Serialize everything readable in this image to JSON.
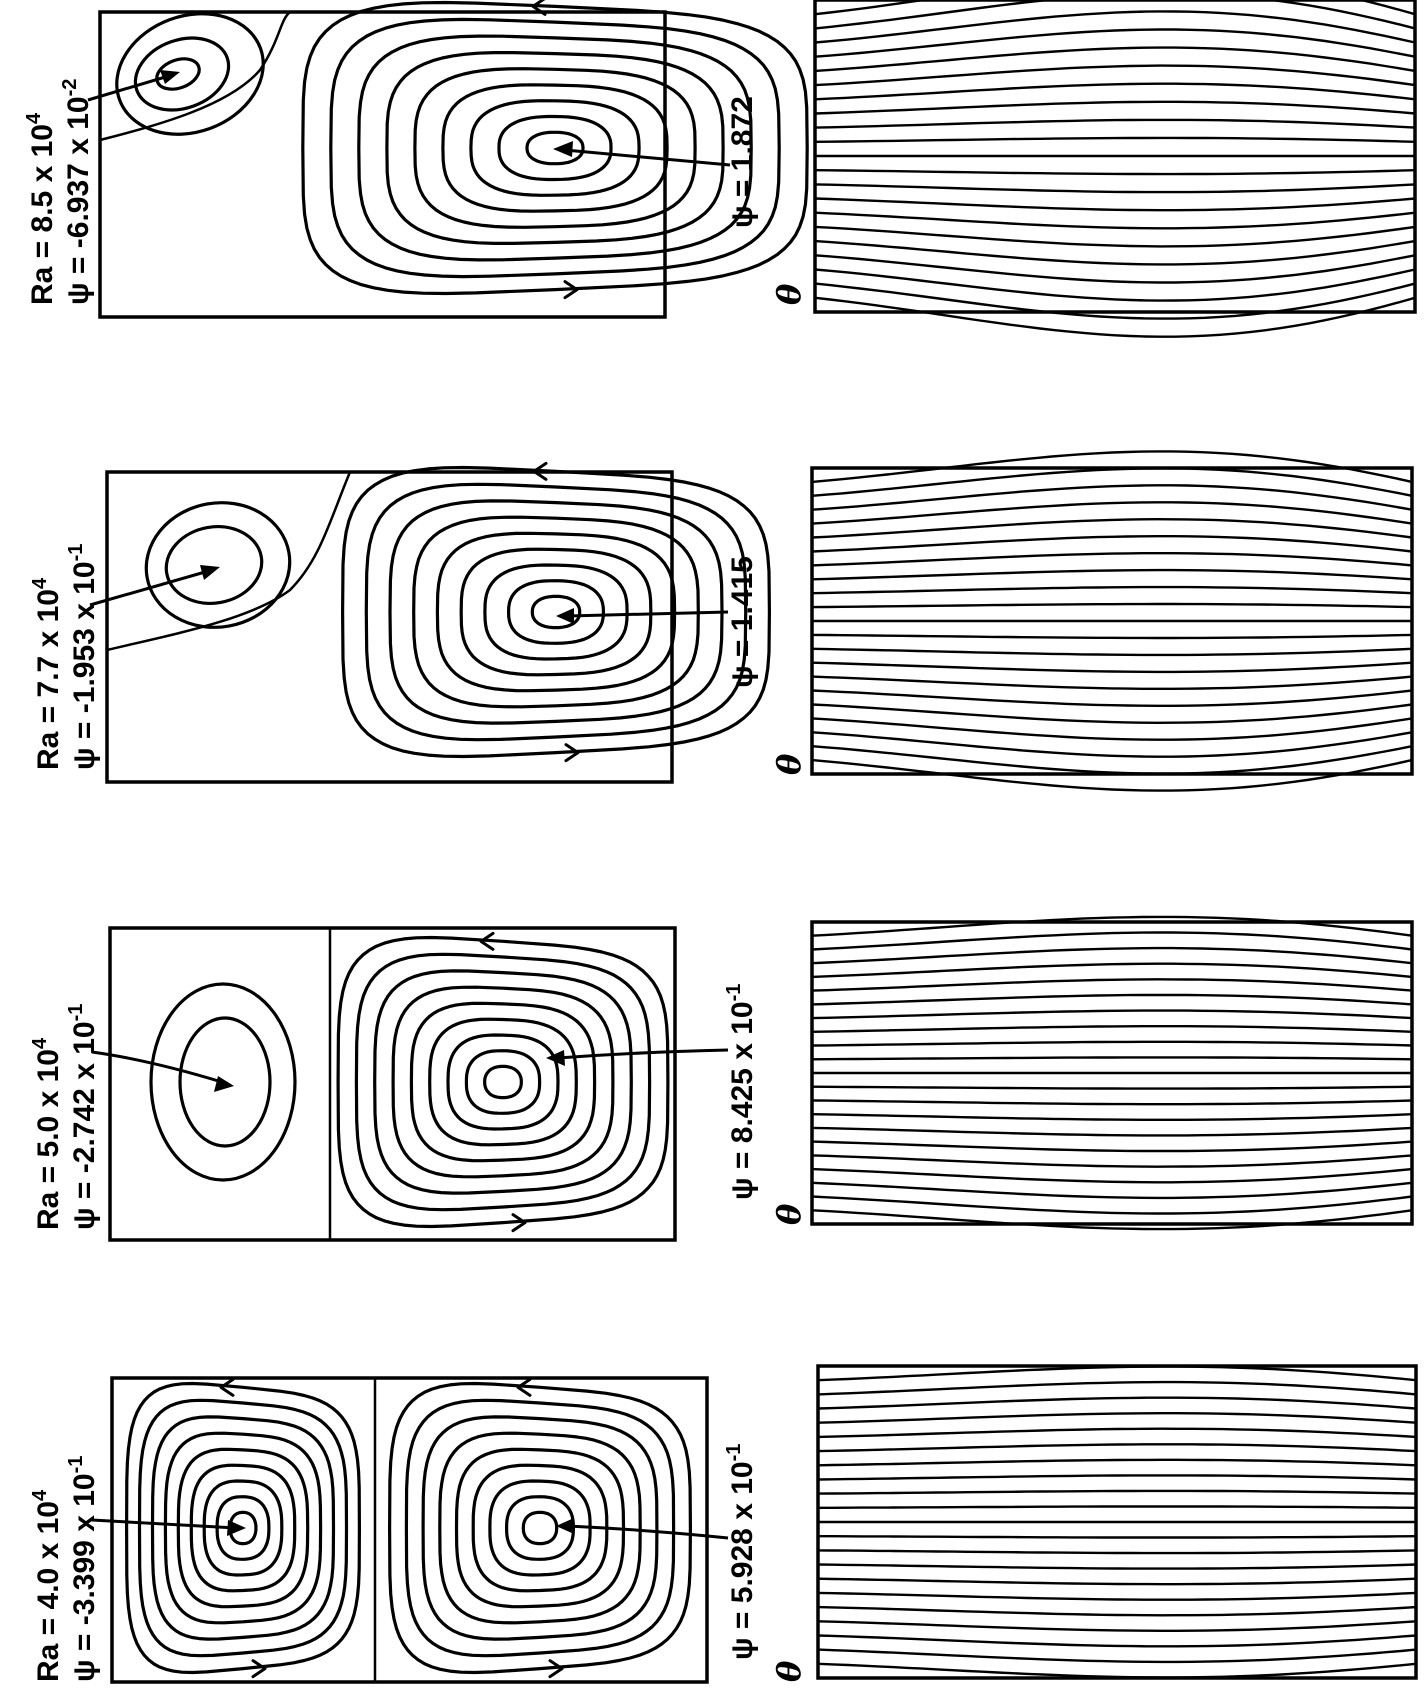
{
  "panels": [
    {
      "ra": "Ra = 4.0 x 10",
      "ra_exp": "4",
      "psi_min": "ψ = -3.399 x 10",
      "psi_min_exp": "-1",
      "psi_max": "ψ = 5.928 x 10",
      "psi_max_exp": "-1",
      "theta": "θ"
    },
    {
      "ra": "Ra = 5.0 x 10",
      "ra_exp": "4",
      "psi_min": "ψ = -2.742 x 10",
      "psi_min_exp": "-1",
      "psi_max": "ψ = 8.425 x 10",
      "psi_max_exp": "-1",
      "theta": "θ"
    },
    {
      "ra": "Ra = 7.7 x 10",
      "ra_exp": "4",
      "psi_min": "ψ = -1.953 x 10",
      "psi_min_exp": "-1",
      "psi_max": "ψ = 1.415",
      "psi_max_exp": "",
      "theta": "θ"
    },
    {
      "ra": "Ra = 8.5 x 10",
      "ra_exp": "4",
      "psi_min": "ψ = -6.937 x 10",
      "psi_min_exp": "-2",
      "psi_max": "ψ = 1.872",
      "psi_max_exp": "",
      "theta": "θ"
    }
  ]
}
